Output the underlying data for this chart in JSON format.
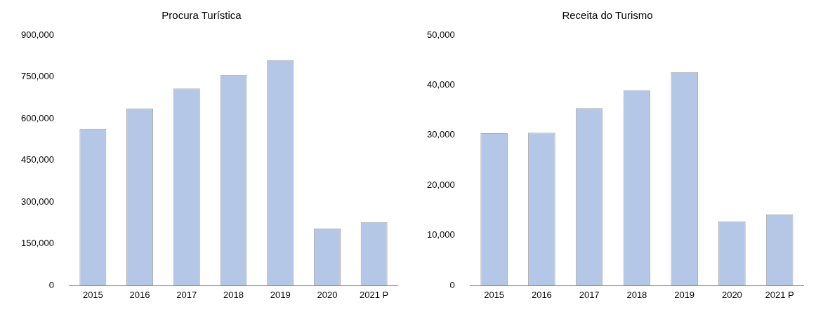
{
  "chart_data": [
    {
      "type": "bar",
      "title": "Procura Turística",
      "categories": [
        "2015",
        "2016",
        "2017",
        "2018",
        "2019",
        "2020",
        "2021 P"
      ],
      "values": [
        563000,
        637000,
        708000,
        757000,
        810000,
        205000,
        228000
      ],
      "color": "#b4c7e7",
      "ylim": [
        0,
        900000
      ],
      "yticks": [
        {
          "value": 0,
          "label": "0"
        },
        {
          "value": 150000,
          "label": "150,000"
        },
        {
          "value": 300000,
          "label": "300,000"
        },
        {
          "value": 450000,
          "label": "450,000"
        },
        {
          "value": 600000,
          "label": "600,000"
        },
        {
          "value": 750000,
          "label": "750,000"
        },
        {
          "value": 900000,
          "label": "900,000"
        }
      ],
      "grid": false,
      "legend": false
    },
    {
      "type": "bar",
      "title": "Receita do Turismo",
      "categories": [
        "2015",
        "2016",
        "2017",
        "2018",
        "2019",
        "2020",
        "2021 P"
      ],
      "values": [
        30400,
        30500,
        35400,
        39000,
        42600,
        12800,
        14200
      ],
      "color": "#b4c7e7",
      "ylim": [
        0,
        50000
      ],
      "yticks": [
        {
          "value": 0,
          "label": "0"
        },
        {
          "value": 10000,
          "label": "10,000"
        },
        {
          "value": 20000,
          "label": "20,000"
        },
        {
          "value": 30000,
          "label": "30,000"
        },
        {
          "value": 40000,
          "label": "40,000"
        },
        {
          "value": 50000,
          "label": "50,000"
        }
      ],
      "grid": false,
      "legend": false
    }
  ]
}
